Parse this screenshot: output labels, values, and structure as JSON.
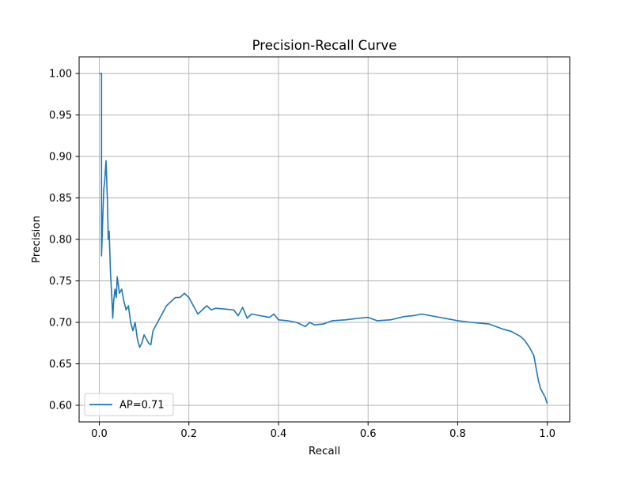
{
  "chart_data": {
    "type": "line",
    "title": "Precision-Recall Curve",
    "xlabel": "Recall",
    "ylabel": "Precision",
    "xlim": [
      -0.045,
      1.05
    ],
    "ylim": [
      0.58,
      1.02
    ],
    "xticks": [
      0.0,
      0.2,
      0.4,
      0.6,
      0.8,
      1.0
    ],
    "xtick_labels": [
      "0.0",
      "0.2",
      "0.4",
      "0.6",
      "0.8",
      "1.0"
    ],
    "yticks": [
      0.6,
      0.65,
      0.7,
      0.75,
      0.8,
      0.85,
      0.9,
      0.95,
      1.0
    ],
    "ytick_labels": [
      "0.60",
      "0.65",
      "0.70",
      "0.75",
      "0.80",
      "0.85",
      "0.90",
      "0.95",
      "1.00"
    ],
    "grid": true,
    "legend_position": "lower-left",
    "series": [
      {
        "name": "AP=0.71",
        "color": "#1f77b4",
        "x": [
          0.0,
          0.005,
          0.005,
          0.008,
          0.01,
          0.012,
          0.015,
          0.018,
          0.02,
          0.022,
          0.025,
          0.028,
          0.03,
          0.032,
          0.035,
          0.038,
          0.04,
          0.045,
          0.05,
          0.055,
          0.06,
          0.065,
          0.07,
          0.075,
          0.08,
          0.085,
          0.09,
          0.095,
          0.1,
          0.105,
          0.11,
          0.115,
          0.12,
          0.13,
          0.14,
          0.15,
          0.16,
          0.17,
          0.18,
          0.19,
          0.2,
          0.21,
          0.22,
          0.23,
          0.24,
          0.25,
          0.26,
          0.28,
          0.3,
          0.31,
          0.32,
          0.33,
          0.34,
          0.36,
          0.38,
          0.39,
          0.4,
          0.42,
          0.44,
          0.46,
          0.47,
          0.48,
          0.5,
          0.52,
          0.55,
          0.58,
          0.6,
          0.62,
          0.65,
          0.68,
          0.7,
          0.72,
          0.75,
          0.78,
          0.8,
          0.83,
          0.85,
          0.87,
          0.9,
          0.92,
          0.94,
          0.95,
          0.96,
          0.965,
          0.97,
          0.975,
          0.98,
          0.985,
          0.99,
          0.995,
          1.0
        ],
        "y": [
          1.0,
          1.0,
          0.78,
          0.83,
          0.86,
          0.87,
          0.895,
          0.85,
          0.8,
          0.81,
          0.76,
          0.73,
          0.705,
          0.725,
          0.74,
          0.73,
          0.755,
          0.735,
          0.74,
          0.725,
          0.715,
          0.72,
          0.7,
          0.69,
          0.7,
          0.68,
          0.67,
          0.675,
          0.685,
          0.68,
          0.675,
          0.673,
          0.69,
          0.7,
          0.71,
          0.72,
          0.725,
          0.73,
          0.73,
          0.735,
          0.73,
          0.72,
          0.71,
          0.715,
          0.72,
          0.715,
          0.717,
          0.716,
          0.715,
          0.708,
          0.718,
          0.705,
          0.71,
          0.708,
          0.706,
          0.71,
          0.703,
          0.702,
          0.7,
          0.695,
          0.7,
          0.697,
          0.698,
          0.702,
          0.703,
          0.705,
          0.706,
          0.702,
          0.703,
          0.707,
          0.708,
          0.71,
          0.707,
          0.704,
          0.702,
          0.7,
          0.699,
          0.698,
          0.692,
          0.689,
          0.683,
          0.678,
          0.67,
          0.665,
          0.66,
          0.645,
          0.63,
          0.62,
          0.615,
          0.61,
          0.602
        ]
      }
    ]
  }
}
